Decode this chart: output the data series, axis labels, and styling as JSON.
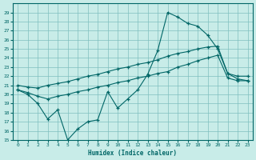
{
  "xlabel": "Humidex (Indice chaleur)",
  "bg_color": "#c8ece8",
  "grid_color": "#7fbfbf",
  "line_color": "#006666",
  "xlim": [
    -0.5,
    23.5
  ],
  "ylim": [
    15,
    30
  ],
  "xticks": [
    0,
    1,
    2,
    3,
    4,
    5,
    6,
    7,
    8,
    9,
    10,
    11,
    12,
    13,
    14,
    15,
    16,
    17,
    18,
    19,
    20,
    21,
    22,
    23
  ],
  "yticks": [
    15,
    16,
    17,
    18,
    19,
    20,
    21,
    22,
    23,
    24,
    25,
    26,
    27,
    28,
    29
  ],
  "top_x": [
    0,
    1,
    2,
    3,
    4,
    5,
    6,
    7,
    8,
    9,
    10,
    11,
    12,
    13,
    14,
    15,
    16,
    17,
    18,
    19,
    20,
    21,
    22,
    23
  ],
  "top_y": [
    20.5,
    20.0,
    19.0,
    17.3,
    18.3,
    15.0,
    16.2,
    17.0,
    17.2,
    20.3,
    18.5,
    19.5,
    20.5,
    22.2,
    24.8,
    29.0,
    28.5,
    27.8,
    27.5,
    26.5,
    25.0,
    22.3,
    21.7,
    21.5
  ],
  "mid_x": [
    0,
    1,
    2,
    3,
    4,
    5,
    6,
    7,
    8,
    9,
    10,
    11,
    12,
    13,
    14,
    15,
    16,
    17,
    18,
    19,
    20,
    21,
    22,
    23
  ],
  "mid_y": [
    21.0,
    20.8,
    20.7,
    21.0,
    21.2,
    21.4,
    21.7,
    22.0,
    22.2,
    22.5,
    22.8,
    23.0,
    23.3,
    23.5,
    23.8,
    24.2,
    24.5,
    24.7,
    25.0,
    25.2,
    25.3,
    22.3,
    22.0,
    22.0
  ],
  "low_x": [
    0,
    1,
    2,
    3,
    4,
    5,
    6,
    7,
    8,
    9,
    10,
    11,
    12,
    13,
    14,
    15,
    16,
    17,
    18,
    19,
    20,
    21,
    22,
    23
  ],
  "low_y": [
    20.5,
    20.2,
    19.8,
    19.5,
    19.8,
    20.0,
    20.3,
    20.5,
    20.8,
    21.0,
    21.3,
    21.5,
    21.8,
    22.0,
    22.3,
    22.5,
    23.0,
    23.3,
    23.7,
    24.0,
    24.3,
    21.8,
    21.5,
    21.5
  ]
}
